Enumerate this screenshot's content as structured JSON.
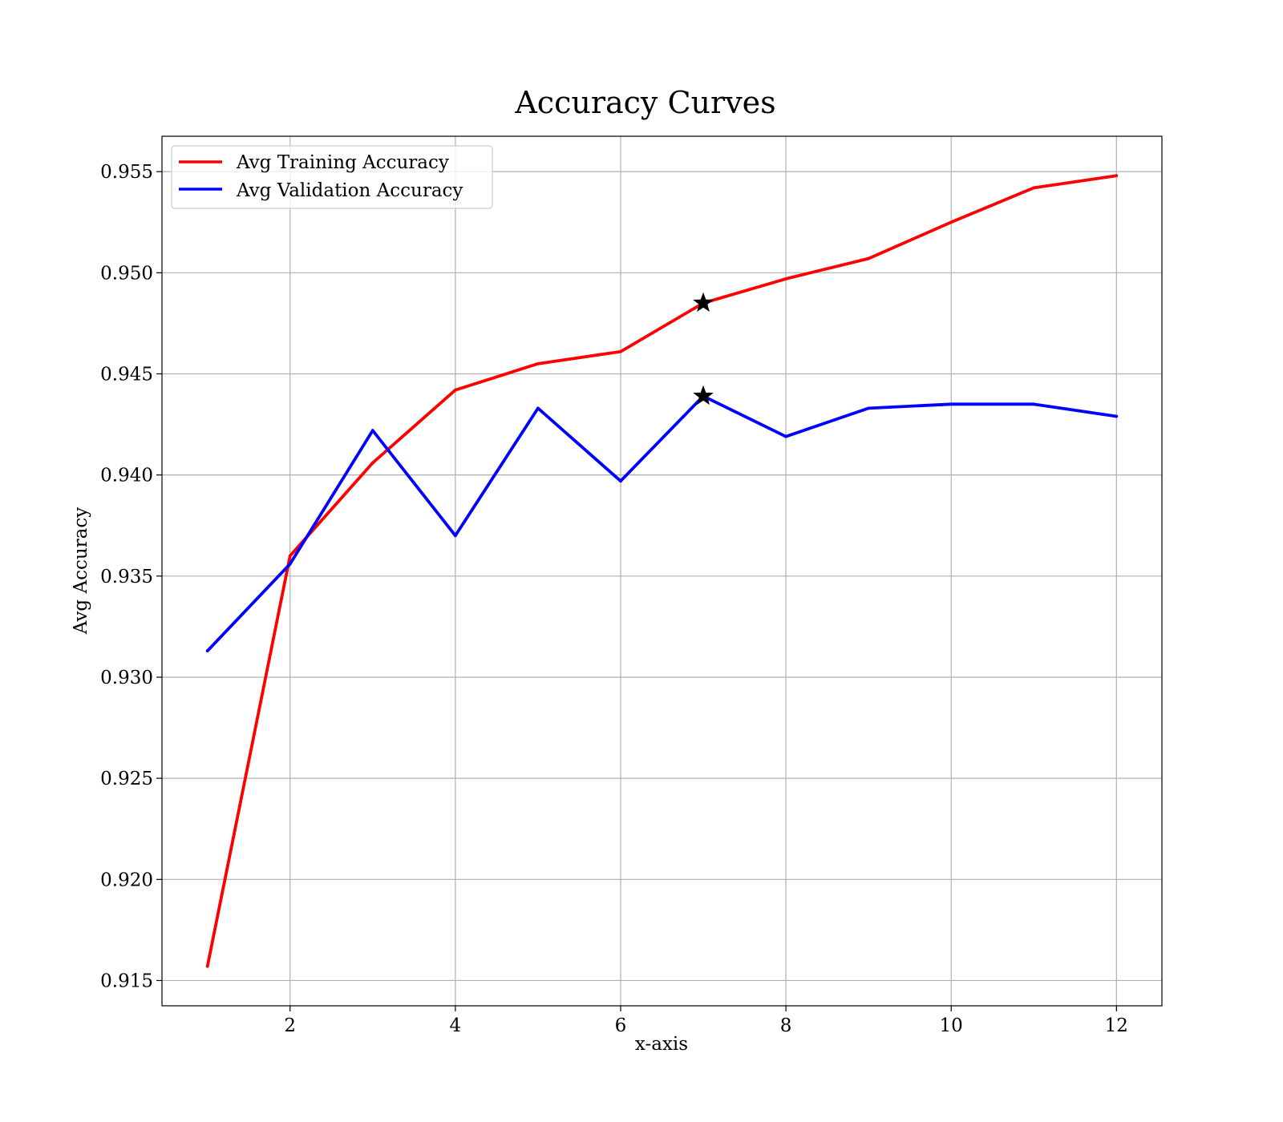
{
  "chart_data": {
    "type": "line",
    "title": "Accuracy Curves",
    "xlabel": "x-axis",
    "ylabel": "Avg Accuracy",
    "xlim": [
      0.45,
      12.55
    ],
    "ylim": [
      0.91375,
      0.95675
    ],
    "xticks": [
      2,
      4,
      6,
      8,
      10,
      12
    ],
    "xtick_labels": [
      "2",
      "4",
      "6",
      "8",
      "10",
      "12"
    ],
    "yticks": [
      0.915,
      0.92,
      0.925,
      0.93,
      0.935,
      0.94,
      0.945,
      0.95,
      0.955
    ],
    "ytick_labels": [
      "0.915",
      "0.920",
      "0.925",
      "0.930",
      "0.935",
      "0.940",
      "0.945",
      "0.950",
      "0.955"
    ],
    "grid": true,
    "legend_position": "upper-left",
    "x": [
      1,
      2,
      3,
      4,
      5,
      6,
      7,
      8,
      9,
      10,
      11,
      12
    ],
    "series": [
      {
        "name": "Avg Training Accuracy",
        "color": "#ff0000",
        "values": [
          0.9157,
          0.936,
          0.9406,
          0.9442,
          0.9455,
          0.9461,
          0.9485,
          0.9497,
          0.9507,
          0.9525,
          0.9542,
          0.9548
        ]
      },
      {
        "name": "Avg Validation Accuracy",
        "color": "#0000ff",
        "values": [
          0.9313,
          0.9356,
          0.9422,
          0.937,
          0.9433,
          0.9397,
          0.9439,
          0.9419,
          0.9433,
          0.9435,
          0.9435,
          0.9429
        ]
      }
    ],
    "markers": [
      {
        "series": "Avg Training Accuracy",
        "x": 7,
        "y": 0.9485,
        "symbol": "star",
        "color": "#000000"
      },
      {
        "series": "Avg Validation Accuracy",
        "x": 7,
        "y": 0.9439,
        "symbol": "star",
        "color": "#000000"
      }
    ]
  }
}
